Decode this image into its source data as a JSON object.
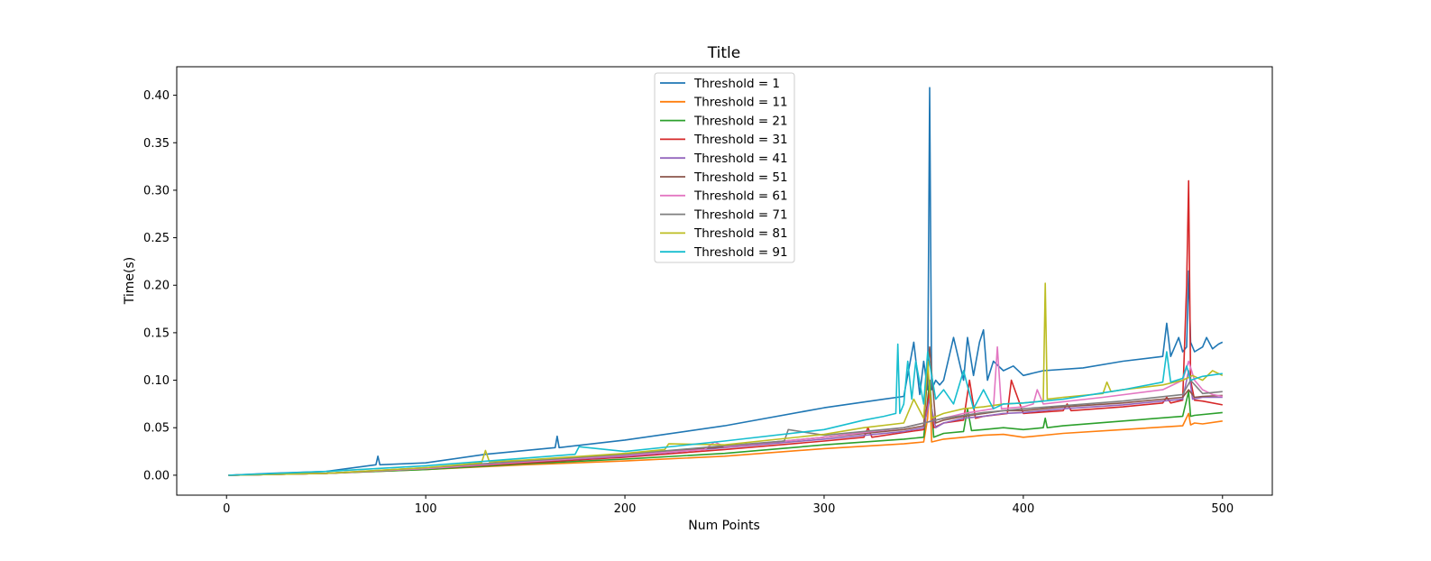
{
  "chart_data": {
    "type": "line",
    "title": "Title",
    "xlabel": "Num Points",
    "ylabel": "Time(s)",
    "xlim": [
      -25,
      525
    ],
    "ylim": [
      -0.021,
      0.43
    ],
    "xticks": [
      0,
      100,
      200,
      300,
      400,
      500
    ],
    "xtick_labels": [
      "0",
      "100",
      "200",
      "300",
      "400",
      "500"
    ],
    "yticks": [
      0.0,
      0.05,
      0.1,
      0.15,
      0.2,
      0.25,
      0.3,
      0.35,
      0.4
    ],
    "ytick_labels": [
      "0.00",
      "0.05",
      "0.10",
      "0.15",
      "0.20",
      "0.25",
      "0.30",
      "0.35",
      "0.40"
    ],
    "grid": false,
    "legend_position": "top-center",
    "series": [
      {
        "name": "Threshold = 1",
        "color": "#1f77b4",
        "x": [
          1,
          22,
          50,
          75,
          76,
          77,
          100,
          130,
          165,
          166,
          167,
          200,
          250,
          300,
          330,
          340,
          345,
          348,
          350,
          352,
          353,
          354,
          356,
          358,
          360,
          365,
          370,
          372,
          375,
          378,
          380,
          382,
          385,
          390,
          395,
          400,
          410,
          430,
          450,
          470,
          472,
          474,
          478,
          480,
          482,
          483,
          484,
          486,
          490,
          492,
          495,
          498,
          500
        ],
        "y": [
          0.0,
          0.002,
          0.004,
          0.011,
          0.02,
          0.011,
          0.013,
          0.022,
          0.029,
          0.041,
          0.029,
          0.037,
          0.052,
          0.071,
          0.08,
          0.083,
          0.14,
          0.085,
          0.12,
          0.09,
          0.408,
          0.09,
          0.1,
          0.095,
          0.1,
          0.145,
          0.1,
          0.145,
          0.105,
          0.14,
          0.153,
          0.1,
          0.12,
          0.11,
          0.115,
          0.105,
          0.11,
          0.113,
          0.12,
          0.125,
          0.16,
          0.125,
          0.145,
          0.13,
          0.135,
          0.215,
          0.14,
          0.13,
          0.135,
          0.145,
          0.133,
          0.138,
          0.14
        ]
      },
      {
        "name": "Threshold = 11",
        "color": "#ff7f0e",
        "x": [
          1,
          50,
          100,
          150,
          200,
          250,
          300,
          340,
          350,
          352,
          353,
          354,
          360,
          370,
          380,
          390,
          400,
          420,
          450,
          480,
          483,
          484,
          486,
          490,
          500
        ],
        "y": [
          0.0,
          0.002,
          0.006,
          0.011,
          0.015,
          0.02,
          0.028,
          0.033,
          0.035,
          0.06,
          0.1,
          0.035,
          0.038,
          0.04,
          0.042,
          0.043,
          0.04,
          0.044,
          0.048,
          0.052,
          0.065,
          0.053,
          0.055,
          0.054,
          0.057
        ]
      },
      {
        "name": "Threshold = 21",
        "color": "#2ca02c",
        "x": [
          1,
          50,
          100,
          150,
          200,
          250,
          300,
          340,
          350,
          353,
          355,
          360,
          370,
          372,
          374,
          380,
          390,
          400,
          410,
          411,
          412,
          420,
          450,
          480,
          483,
          484,
          486,
          500
        ],
        "y": [
          0.0,
          0.002,
          0.006,
          0.012,
          0.017,
          0.023,
          0.032,
          0.038,
          0.04,
          0.1,
          0.04,
          0.044,
          0.046,
          0.07,
          0.047,
          0.048,
          0.05,
          0.048,
          0.05,
          0.06,
          0.05,
          0.052,
          0.057,
          0.062,
          0.088,
          0.062,
          0.063,
          0.066
        ]
      },
      {
        "name": "Threshold = 31",
        "color": "#d62728",
        "x": [
          1,
          50,
          100,
          150,
          200,
          250,
          300,
          320,
          322,
          324,
          340,
          350,
          353,
          355,
          360,
          370,
          373,
          376,
          380,
          392,
          394,
          400,
          420,
          422,
          424,
          450,
          470,
          472,
          474,
          480,
          482,
          483,
          484,
          486,
          490,
          500
        ],
        "y": [
          0.0,
          0.002,
          0.007,
          0.013,
          0.019,
          0.027,
          0.036,
          0.04,
          0.05,
          0.04,
          0.045,
          0.048,
          0.09,
          0.05,
          0.055,
          0.058,
          0.1,
          0.06,
          0.062,
          0.065,
          0.1,
          0.065,
          0.068,
          0.075,
          0.068,
          0.072,
          0.076,
          0.082,
          0.076,
          0.079,
          0.2,
          0.31,
          0.1,
          0.079,
          0.078,
          0.074
        ]
      },
      {
        "name": "Threshold = 41",
        "color": "#9467bd",
        "x": [
          1,
          50,
          100,
          150,
          200,
          250,
          300,
          340,
          350,
          353,
          356,
          360,
          370,
          380,
          390,
          400,
          420,
          450,
          480,
          483,
          485,
          490,
          500
        ],
        "y": [
          0.0,
          0.002,
          0.007,
          0.014,
          0.02,
          0.029,
          0.038,
          0.046,
          0.05,
          0.08,
          0.05,
          0.055,
          0.06,
          0.062,
          0.065,
          0.066,
          0.07,
          0.074,
          0.08,
          0.11,
          0.08,
          0.082,
          0.082
        ]
      },
      {
        "name": "Threshold = 51",
        "color": "#8c564b",
        "x": [
          1,
          50,
          100,
          150,
          200,
          250,
          300,
          340,
          350,
          353,
          356,
          360,
          370,
          380,
          390,
          400,
          420,
          450,
          480,
          483,
          486,
          490,
          500
        ],
        "y": [
          0.0,
          0.002,
          0.007,
          0.014,
          0.021,
          0.03,
          0.04,
          0.048,
          0.052,
          0.135,
          0.055,
          0.058,
          0.062,
          0.065,
          0.068,
          0.068,
          0.072,
          0.076,
          0.082,
          0.09,
          0.082,
          0.083,
          0.084
        ]
      },
      {
        "name": "Threshold = 61",
        "color": "#e377c2",
        "x": [
          1,
          50,
          100,
          150,
          200,
          240,
          245,
          250,
          300,
          340,
          350,
          360,
          370,
          385,
          387,
          389,
          400,
          405,
          407,
          410,
          440,
          470,
          480,
          483,
          486,
          490,
          495,
          500
        ],
        "y": [
          0.0,
          0.002,
          0.007,
          0.014,
          0.021,
          0.027,
          0.035,
          0.03,
          0.04,
          0.05,
          0.055,
          0.06,
          0.065,
          0.07,
          0.135,
          0.07,
          0.072,
          0.075,
          0.09,
          0.075,
          0.082,
          0.09,
          0.1,
          0.12,
          0.1,
          0.09,
          0.085,
          0.083
        ]
      },
      {
        "name": "Threshold = 71",
        "color": "#7f7f7f",
        "x": [
          1,
          50,
          100,
          150,
          200,
          250,
          280,
          282,
          300,
          340,
          350,
          360,
          370,
          380,
          390,
          400,
          450,
          480,
          484,
          490,
          500
        ],
        "y": [
          0.0,
          0.002,
          0.008,
          0.015,
          0.022,
          0.031,
          0.036,
          0.048,
          0.042,
          0.05,
          0.055,
          0.06,
          0.063,
          0.066,
          0.068,
          0.07,
          0.078,
          0.085,
          0.1,
          0.086,
          0.088
        ]
      },
      {
        "name": "Threshold = 81",
        "color": "#bcbd22",
        "x": [
          1,
          50,
          100,
          128,
          130,
          132,
          150,
          200,
          220,
          222,
          250,
          300,
          320,
          340,
          345,
          350,
          352,
          354,
          360,
          370,
          380,
          390,
          400,
          410,
          411,
          412,
          420,
          440,
          442,
          444,
          450,
          470,
          480,
          485,
          490,
          495,
          500
        ],
        "y": [
          0.0,
          0.002,
          0.008,
          0.013,
          0.026,
          0.014,
          0.016,
          0.023,
          0.027,
          0.033,
          0.032,
          0.043,
          0.05,
          0.055,
          0.08,
          0.06,
          0.12,
          0.06,
          0.065,
          0.07,
          0.072,
          0.075,
          0.076,
          0.078,
          0.202,
          0.08,
          0.082,
          0.086,
          0.098,
          0.088,
          0.09,
          0.095,
          0.1,
          0.105,
          0.1,
          0.11,
          0.105
        ]
      },
      {
        "name": "Threshold = 91",
        "color": "#17becf",
        "x": [
          1,
          50,
          100,
          150,
          175,
          177,
          200,
          250,
          300,
          320,
          330,
          336,
          337,
          338,
          340,
          342,
          344,
          346,
          350,
          352,
          356,
          360,
          365,
          370,
          375,
          380,
          385,
          390,
          400,
          420,
          450,
          470,
          472,
          474,
          480,
          482,
          484,
          490,
          500
        ],
        "y": [
          0.0,
          0.004,
          0.01,
          0.018,
          0.022,
          0.03,
          0.025,
          0.036,
          0.048,
          0.058,
          0.062,
          0.065,
          0.138,
          0.065,
          0.075,
          0.12,
          0.08,
          0.12,
          0.075,
          0.13,
          0.08,
          0.09,
          0.075,
          0.11,
          0.07,
          0.09,
          0.07,
          0.075,
          0.076,
          0.08,
          0.09,
          0.098,
          0.13,
          0.098,
          0.102,
          0.115,
          0.1,
          0.104,
          0.107
        ]
      }
    ]
  }
}
